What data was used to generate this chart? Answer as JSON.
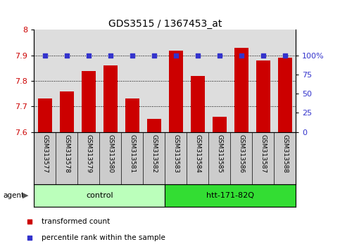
{
  "title": "GDS3515 / 1367453_at",
  "samples": [
    "GSM313577",
    "GSM313578",
    "GSM313579",
    "GSM313580",
    "GSM313581",
    "GSM313582",
    "GSM313583",
    "GSM313584",
    "GSM313585",
    "GSM313586",
    "GSM313587",
    "GSM313588"
  ],
  "bar_values": [
    7.73,
    7.76,
    7.84,
    7.86,
    7.73,
    7.65,
    7.92,
    7.82,
    7.66,
    7.93,
    7.88,
    7.89
  ],
  "percentile_values": [
    100,
    100,
    100,
    100,
    100,
    100,
    100,
    100,
    100,
    100,
    100,
    100
  ],
  "bar_color": "#cc0000",
  "percentile_color": "#3333cc",
  "ylim_left": [
    7.6,
    8.0
  ],
  "ylim_right": [
    0,
    133.33
  ],
  "yticks_left": [
    7.6,
    7.7,
    7.8,
    7.9,
    8.0
  ],
  "ytick_labels_left": [
    "7.6",
    "7.7",
    "7.8",
    "7.9",
    "8"
  ],
  "yticks_right": [
    0,
    25,
    50,
    75,
    100
  ],
  "ytick_labels_right": [
    "0",
    "25",
    "50",
    "75",
    "100%"
  ],
  "groups": [
    {
      "label": "control",
      "start": 0,
      "end": 5,
      "color": "#bbffbb"
    },
    {
      "label": "htt-171-82Q",
      "start": 6,
      "end": 11,
      "color": "#33dd33"
    }
  ],
  "agent_label": "agent",
  "legend": [
    {
      "label": "transformed count",
      "color": "#cc0000"
    },
    {
      "label": "percentile rank within the sample",
      "color": "#3333cc"
    }
  ],
  "plot_bg_color": "#dddddd",
  "label_bg_color": "#cccccc",
  "grid_color": "#000000",
  "bar_width": 0.65,
  "percentile_rank": 100
}
